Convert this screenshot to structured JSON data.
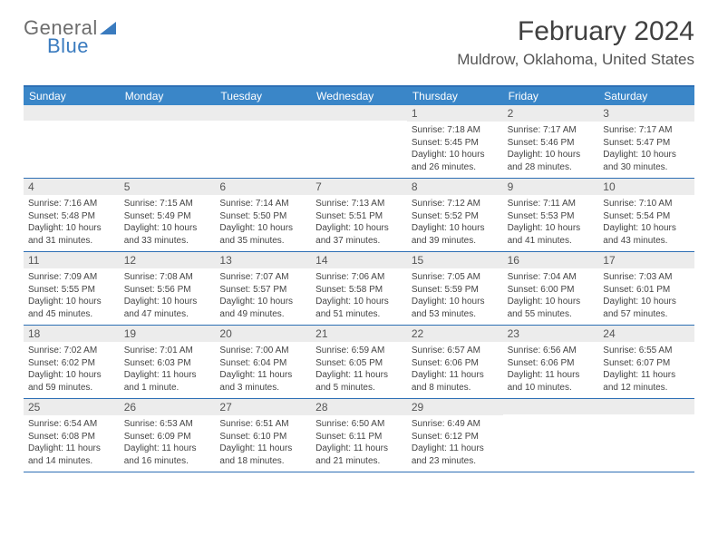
{
  "logo": {
    "line1": "General",
    "line2": "Blue"
  },
  "title": "February 2024",
  "location": "Muldrow, Oklahoma, United States",
  "colors": {
    "header_bg": "#3a86c8",
    "header_border": "#2d6fb4",
    "daynum_bg": "#ececec",
    "logo_gray": "#6d6d6d",
    "logo_blue": "#3a7bbf"
  },
  "days_of_week": [
    "Sunday",
    "Monday",
    "Tuesday",
    "Wednesday",
    "Thursday",
    "Friday",
    "Saturday"
  ],
  "weeks": [
    [
      {
        "n": "",
        "sr": "",
        "ss": "",
        "dl": ""
      },
      {
        "n": "",
        "sr": "",
        "ss": "",
        "dl": ""
      },
      {
        "n": "",
        "sr": "",
        "ss": "",
        "dl": ""
      },
      {
        "n": "",
        "sr": "",
        "ss": "",
        "dl": ""
      },
      {
        "n": "1",
        "sr": "Sunrise: 7:18 AM",
        "ss": "Sunset: 5:45 PM",
        "dl": "Daylight: 10 hours and 26 minutes."
      },
      {
        "n": "2",
        "sr": "Sunrise: 7:17 AM",
        "ss": "Sunset: 5:46 PM",
        "dl": "Daylight: 10 hours and 28 minutes."
      },
      {
        "n": "3",
        "sr": "Sunrise: 7:17 AM",
        "ss": "Sunset: 5:47 PM",
        "dl": "Daylight: 10 hours and 30 minutes."
      }
    ],
    [
      {
        "n": "4",
        "sr": "Sunrise: 7:16 AM",
        "ss": "Sunset: 5:48 PM",
        "dl": "Daylight: 10 hours and 31 minutes."
      },
      {
        "n": "5",
        "sr": "Sunrise: 7:15 AM",
        "ss": "Sunset: 5:49 PM",
        "dl": "Daylight: 10 hours and 33 minutes."
      },
      {
        "n": "6",
        "sr": "Sunrise: 7:14 AM",
        "ss": "Sunset: 5:50 PM",
        "dl": "Daylight: 10 hours and 35 minutes."
      },
      {
        "n": "7",
        "sr": "Sunrise: 7:13 AM",
        "ss": "Sunset: 5:51 PM",
        "dl": "Daylight: 10 hours and 37 minutes."
      },
      {
        "n": "8",
        "sr": "Sunrise: 7:12 AM",
        "ss": "Sunset: 5:52 PM",
        "dl": "Daylight: 10 hours and 39 minutes."
      },
      {
        "n": "9",
        "sr": "Sunrise: 7:11 AM",
        "ss": "Sunset: 5:53 PM",
        "dl": "Daylight: 10 hours and 41 minutes."
      },
      {
        "n": "10",
        "sr": "Sunrise: 7:10 AM",
        "ss": "Sunset: 5:54 PM",
        "dl": "Daylight: 10 hours and 43 minutes."
      }
    ],
    [
      {
        "n": "11",
        "sr": "Sunrise: 7:09 AM",
        "ss": "Sunset: 5:55 PM",
        "dl": "Daylight: 10 hours and 45 minutes."
      },
      {
        "n": "12",
        "sr": "Sunrise: 7:08 AM",
        "ss": "Sunset: 5:56 PM",
        "dl": "Daylight: 10 hours and 47 minutes."
      },
      {
        "n": "13",
        "sr": "Sunrise: 7:07 AM",
        "ss": "Sunset: 5:57 PM",
        "dl": "Daylight: 10 hours and 49 minutes."
      },
      {
        "n": "14",
        "sr": "Sunrise: 7:06 AM",
        "ss": "Sunset: 5:58 PM",
        "dl": "Daylight: 10 hours and 51 minutes."
      },
      {
        "n": "15",
        "sr": "Sunrise: 7:05 AM",
        "ss": "Sunset: 5:59 PM",
        "dl": "Daylight: 10 hours and 53 minutes."
      },
      {
        "n": "16",
        "sr": "Sunrise: 7:04 AM",
        "ss": "Sunset: 6:00 PM",
        "dl": "Daylight: 10 hours and 55 minutes."
      },
      {
        "n": "17",
        "sr": "Sunrise: 7:03 AM",
        "ss": "Sunset: 6:01 PM",
        "dl": "Daylight: 10 hours and 57 minutes."
      }
    ],
    [
      {
        "n": "18",
        "sr": "Sunrise: 7:02 AM",
        "ss": "Sunset: 6:02 PM",
        "dl": "Daylight: 10 hours and 59 minutes."
      },
      {
        "n": "19",
        "sr": "Sunrise: 7:01 AM",
        "ss": "Sunset: 6:03 PM",
        "dl": "Daylight: 11 hours and 1 minute."
      },
      {
        "n": "20",
        "sr": "Sunrise: 7:00 AM",
        "ss": "Sunset: 6:04 PM",
        "dl": "Daylight: 11 hours and 3 minutes."
      },
      {
        "n": "21",
        "sr": "Sunrise: 6:59 AM",
        "ss": "Sunset: 6:05 PM",
        "dl": "Daylight: 11 hours and 5 minutes."
      },
      {
        "n": "22",
        "sr": "Sunrise: 6:57 AM",
        "ss": "Sunset: 6:06 PM",
        "dl": "Daylight: 11 hours and 8 minutes."
      },
      {
        "n": "23",
        "sr": "Sunrise: 6:56 AM",
        "ss": "Sunset: 6:06 PM",
        "dl": "Daylight: 11 hours and 10 minutes."
      },
      {
        "n": "24",
        "sr": "Sunrise: 6:55 AM",
        "ss": "Sunset: 6:07 PM",
        "dl": "Daylight: 11 hours and 12 minutes."
      }
    ],
    [
      {
        "n": "25",
        "sr": "Sunrise: 6:54 AM",
        "ss": "Sunset: 6:08 PM",
        "dl": "Daylight: 11 hours and 14 minutes."
      },
      {
        "n": "26",
        "sr": "Sunrise: 6:53 AM",
        "ss": "Sunset: 6:09 PM",
        "dl": "Daylight: 11 hours and 16 minutes."
      },
      {
        "n": "27",
        "sr": "Sunrise: 6:51 AM",
        "ss": "Sunset: 6:10 PM",
        "dl": "Daylight: 11 hours and 18 minutes."
      },
      {
        "n": "28",
        "sr": "Sunrise: 6:50 AM",
        "ss": "Sunset: 6:11 PM",
        "dl": "Daylight: 11 hours and 21 minutes."
      },
      {
        "n": "29",
        "sr": "Sunrise: 6:49 AM",
        "ss": "Sunset: 6:12 PM",
        "dl": "Daylight: 11 hours and 23 minutes."
      },
      {
        "n": "",
        "sr": "",
        "ss": "",
        "dl": ""
      },
      {
        "n": "",
        "sr": "",
        "ss": "",
        "dl": ""
      }
    ]
  ]
}
